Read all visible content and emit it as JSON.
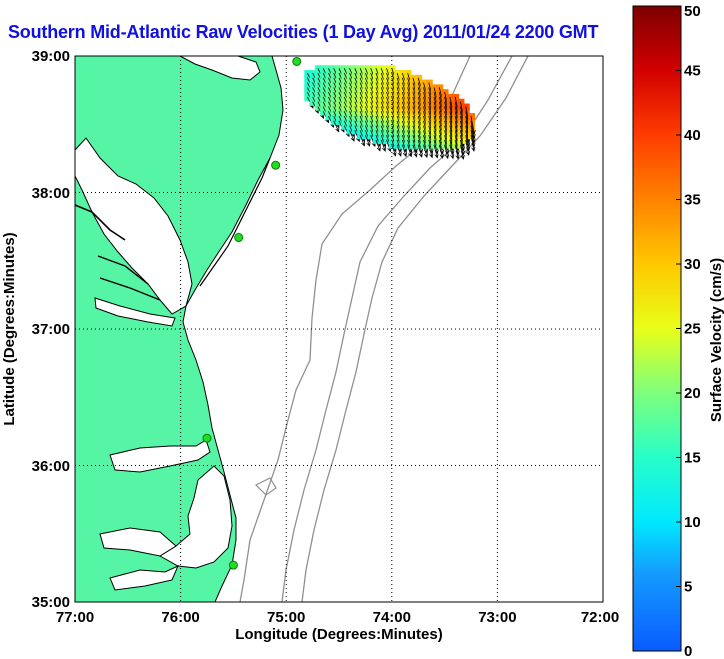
{
  "title": "Southern Mid-Atlantic Raw Velocities (1 Day Avg) 2011/01/24 2200 GMT",
  "chart_data": {
    "type": "map-vector-field",
    "title": "Southern Mid-Atlantic Raw Velocities (1 Day Avg) 2011/01/24 2200 GMT",
    "xlabel": "Longitude (Degrees:Minutes)",
    "ylabel": "Latitude (Degrees:Minutes)",
    "x_ticks": [
      "77:00",
      "76:00",
      "75:00",
      "74:00",
      "73:00",
      "72:00"
    ],
    "y_ticks": [
      "39:00",
      "38:00",
      "37:00",
      "36:00",
      "35:00"
    ],
    "xlim": [
      -77,
      -72
    ],
    "ylim": [
      35,
      39
    ],
    "grid": true,
    "colorbar": {
      "label": "Surface Velocity (cm/s)",
      "range": [
        0,
        50
      ],
      "ticks": [
        0,
        5,
        10,
        15,
        20,
        25,
        30,
        35,
        40,
        45,
        50
      ]
    },
    "stations": [
      {
        "lon": -74.9,
        "lat": 38.96
      },
      {
        "lon": -75.1,
        "lat": 38.2
      },
      {
        "lon": -75.45,
        "lat": 37.67
      },
      {
        "lon": -75.75,
        "lat": 36.2
      },
      {
        "lon": -75.5,
        "lat": 35.27
      }
    ],
    "vectors_summary": {
      "region_lon": [
        -74.85,
        -73.2
      ],
      "region_lat": [
        38.35,
        38.92
      ],
      "speed_range_cms": [
        8,
        45
      ],
      "direction": "south-southeast"
    }
  },
  "colors": {
    "land": "#55f5a5",
    "coast": "#000000",
    "isobath": "#909090",
    "station": "#22dd22",
    "title": "#1010e0"
  }
}
